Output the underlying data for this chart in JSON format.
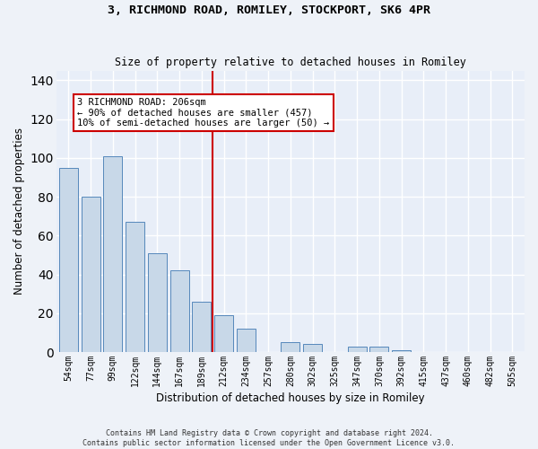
{
  "title_line1": "3, RICHMOND ROAD, ROMILEY, STOCKPORT, SK6 4PR",
  "title_line2": "Size of property relative to detached houses in Romiley",
  "xlabel": "Distribution of detached houses by size in Romiley",
  "ylabel": "Number of detached properties",
  "categories": [
    "54sqm",
    "77sqm",
    "99sqm",
    "122sqm",
    "144sqm",
    "167sqm",
    "189sqm",
    "212sqm",
    "234sqm",
    "257sqm",
    "280sqm",
    "302sqm",
    "325sqm",
    "347sqm",
    "370sqm",
    "392sqm",
    "415sqm",
    "437sqm",
    "460sqm",
    "482sqm",
    "505sqm"
  ],
  "values": [
    95,
    80,
    101,
    67,
    51,
    42,
    26,
    19,
    12,
    0,
    5,
    4,
    0,
    3,
    3,
    1,
    0,
    0,
    0,
    0,
    0
  ],
  "bar_color": "#c8d8e8",
  "bar_edge_color": "#5588bb",
  "vline_x_index": 7,
  "vline_color": "#cc0000",
  "annotation_text": "3 RICHMOND ROAD: 206sqm\n← 90% of detached houses are smaller (457)\n10% of semi-detached houses are larger (50) →",
  "annotation_box_color": "#ffffff",
  "annotation_box_edge_color": "#cc0000",
  "ylim": [
    0,
    145
  ],
  "yticks": [
    0,
    20,
    40,
    60,
    80,
    100,
    120,
    140
  ],
  "background_color": "#e8eef8",
  "fig_background_color": "#eef2f8",
  "grid_color": "#ffffff",
  "footer_line1": "Contains HM Land Registry data © Crown copyright and database right 2024.",
  "footer_line2": "Contains public sector information licensed under the Open Government Licence v3.0."
}
